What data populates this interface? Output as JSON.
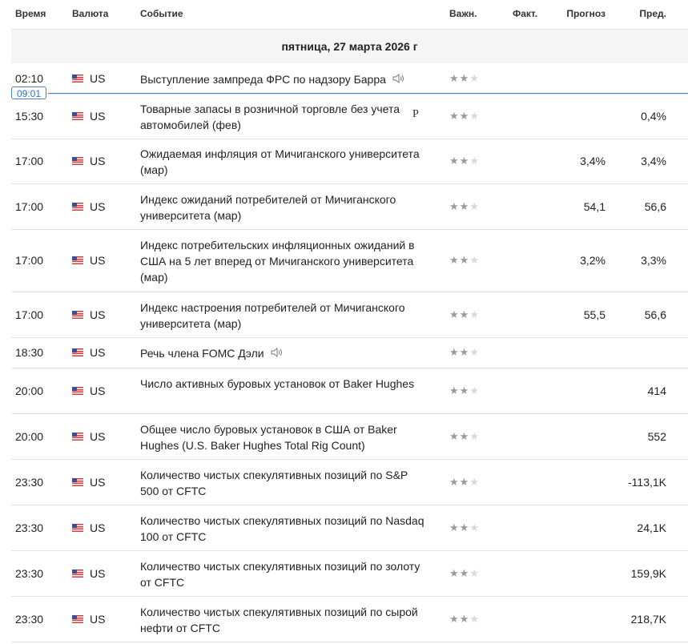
{
  "header": {
    "time": "Время",
    "currency": "Валюта",
    "event": "Событие",
    "importance": "Важн.",
    "actual": "Факт.",
    "forecast": "Прогноз",
    "previous": "Пред."
  },
  "date_label": "пятница, 27 марта 2026 г",
  "current_time": "09:01",
  "colors": {
    "now_line": "#4a7fd6",
    "star_active": "#9a9a9a",
    "star_inactive": "#dadada",
    "date_bg": "#f5f5f5"
  },
  "events": [
    {
      "time": "02:10",
      "currency": "US",
      "event": "Выступление зампреда ФРС по надзору Барра",
      "importance": 2,
      "actual": "",
      "forecast": "",
      "previous": "",
      "speech": true,
      "prelim": ""
    },
    {
      "time": "15:30",
      "currency": "US",
      "event": "Товарные запасы в розничной торговле без учета автомобилей (фев)",
      "importance": 2,
      "actual": "",
      "forecast": "",
      "previous": "0,4%",
      "speech": false,
      "prelim": "P"
    },
    {
      "time": "17:00",
      "currency": "US",
      "event": "Ожидаемая инфляция от Мичиганского университета (мар)",
      "importance": 2,
      "actual": "",
      "forecast": "3,4%",
      "previous": "3,4%",
      "speech": false,
      "prelim": ""
    },
    {
      "time": "17:00",
      "currency": "US",
      "event": "Индекс ожиданий потребителей от Мичиганского университета (мар)",
      "importance": 2,
      "actual": "",
      "forecast": "54,1",
      "previous": "56,6",
      "speech": false,
      "prelim": ""
    },
    {
      "time": "17:00",
      "currency": "US",
      "event": "Индекс потребительских инфляционных ожиданий в США на 5 лет вперед от Мичиганского университета (мар)",
      "importance": 2,
      "actual": "",
      "forecast": "3,2%",
      "previous": "3,3%",
      "speech": false,
      "prelim": ""
    },
    {
      "time": "17:00",
      "currency": "US",
      "event": "Индекс настроения потребителей от Мичиганского университета (мар)",
      "importance": 2,
      "actual": "",
      "forecast": "55,5",
      "previous": "56,6",
      "speech": false,
      "prelim": ""
    },
    {
      "time": "18:30",
      "currency": "US",
      "event": "Речь члена FOMC Дэли",
      "importance": 2,
      "actual": "",
      "forecast": "",
      "previous": "",
      "speech": true,
      "prelim": ""
    },
    {
      "time": "20:00",
      "currency": "US",
      "event": "Число активных буровых установок от Baker Hughes",
      "importance": 2,
      "actual": "",
      "forecast": "",
      "previous": "414",
      "speech": false,
      "prelim": ""
    },
    {
      "time": "20:00",
      "currency": "US",
      "event": "Общее число буровых установок в США от Baker Hughes (U.S. Baker Hughes Total Rig Count)",
      "importance": 2,
      "actual": "",
      "forecast": "",
      "previous": "552",
      "speech": false,
      "prelim": ""
    },
    {
      "time": "23:30",
      "currency": "US",
      "event": "Количество чистых спекулятивных позиций по S&P 500 от CFTC",
      "importance": 2,
      "actual": "",
      "forecast": "",
      "previous": "-113,1K",
      "speech": false,
      "prelim": ""
    },
    {
      "time": "23:30",
      "currency": "US",
      "event": "Количество чистых спекулятивных позиций по Nasdaq 100 от CFTC",
      "importance": 2,
      "actual": "",
      "forecast": "",
      "previous": "24,1K",
      "speech": false,
      "prelim": ""
    },
    {
      "time": "23:30",
      "currency": "US",
      "event": "Количество чистых спекулятивных позиций по золоту от CFTC",
      "importance": 2,
      "actual": "",
      "forecast": "",
      "previous": "159,9K",
      "speech": false,
      "prelim": ""
    },
    {
      "time": "23:30",
      "currency": "US",
      "event": "Количество чистых спекулятивных позиций по сырой нефти от CFTC",
      "importance": 2,
      "actual": "",
      "forecast": "",
      "previous": "218,7K",
      "speech": false,
      "prelim": ""
    }
  ]
}
